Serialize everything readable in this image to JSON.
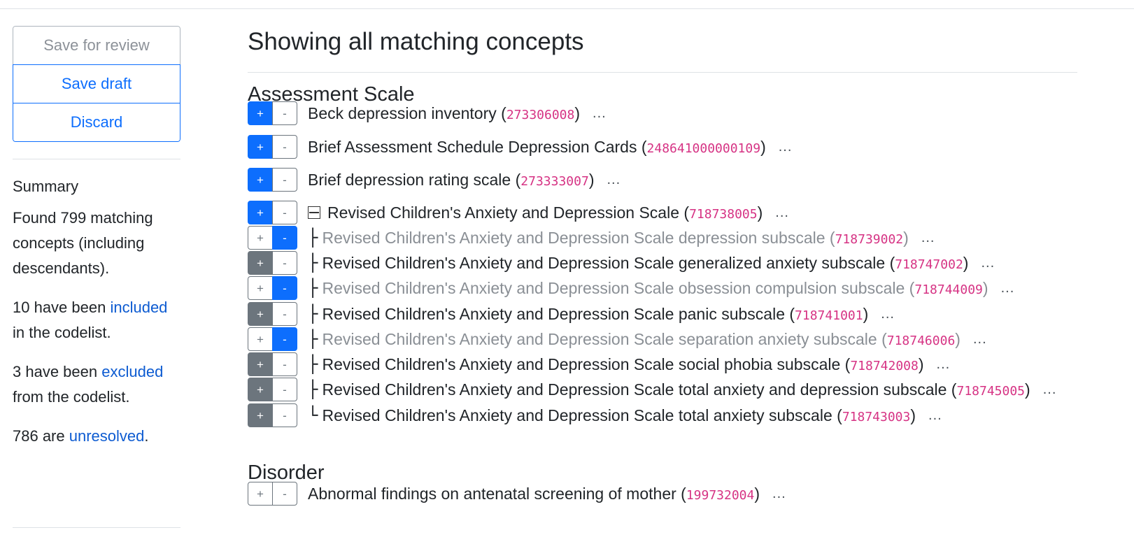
{
  "sidebar": {
    "save_review": "Save for review",
    "save_draft": "Save draft",
    "discard": "Discard",
    "summary_title": "Summary",
    "found_text": "Found 799 matching concepts (including descendants).",
    "included_pre": "10 have been ",
    "included_link": "included",
    "included_post": " in the codelist.",
    "excluded_pre": "3 have been ",
    "excluded_link": "excluded",
    "excluded_post": " from the codelist.",
    "unresolved_pre": "786 are ",
    "unresolved_link": "unresolved",
    "unresolved_post": "."
  },
  "main": {
    "title": "Showing all matching concepts",
    "sections": [
      {
        "title": "Assessment Scale"
      },
      {
        "title": "Disorder"
      }
    ],
    "toggle_plus": "+",
    "toggle_minus": "-",
    "more": "...",
    "concepts": [
      {
        "term": "Beck depression inventory",
        "code": "273306008",
        "state": "included",
        "prefix": ""
      },
      {
        "term": "Brief Assessment Schedule Depression Cards",
        "code": "248641000000109",
        "state": "included",
        "prefix": ""
      },
      {
        "term": "Brief depression rating scale",
        "code": "273333007",
        "state": "included",
        "prefix": ""
      },
      {
        "term": "Revised Children's Anxiety and Depression Scale",
        "code": "718738005",
        "state": "included",
        "prefix": "",
        "expander": true
      },
      {
        "term": "Revised Children's Anxiety and Depression Scale depression subscale",
        "code": "718739002",
        "state": "excluded",
        "prefix": "├"
      },
      {
        "term": "Revised Children's Anxiety and Depression Scale generalized anxiety subscale",
        "code": "718747002",
        "state": "implied",
        "prefix": "├"
      },
      {
        "term": "Revised Children's Anxiety and Depression Scale obsession compulsion subscale",
        "code": "718744009",
        "state": "excluded",
        "prefix": "├"
      },
      {
        "term": "Revised Children's Anxiety and Depression Scale panic subscale",
        "code": "718741001",
        "state": "implied",
        "prefix": "├"
      },
      {
        "term": "Revised Children's Anxiety and Depression Scale separation anxiety subscale",
        "code": "718746006",
        "state": "excluded",
        "prefix": "├"
      },
      {
        "term": "Revised Children's Anxiety and Depression Scale social phobia subscale",
        "code": "718742008",
        "state": "implied",
        "prefix": "├"
      },
      {
        "term": "Revised Children's Anxiety and Depression Scale total anxiety and depression subscale",
        "code": "718745005",
        "state": "implied",
        "prefix": "├"
      },
      {
        "term": "Revised Children's Anxiety and Depression Scale total anxiety subscale",
        "code": "718743003",
        "state": "implied",
        "prefix": "└"
      },
      {
        "term": "Abnormal findings on antenatal screening of mother",
        "code": "199732004",
        "state": "unresolved",
        "prefix": ""
      }
    ]
  }
}
